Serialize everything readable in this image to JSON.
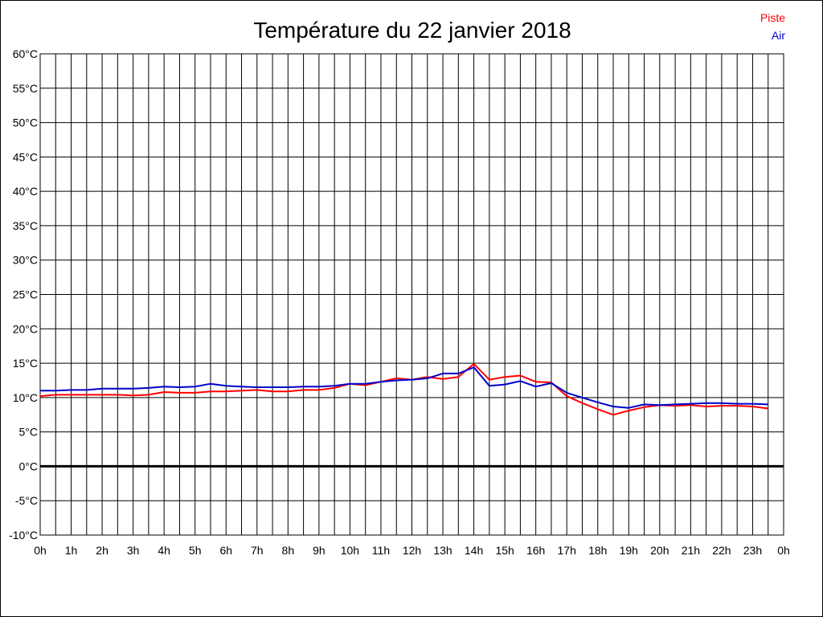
{
  "chart_data": {
    "type": "line",
    "title": "Température du 22 janvier 2018",
    "xlabel": "",
    "ylabel": "",
    "xlim": [
      0,
      24
    ],
    "ylim": [
      -10,
      60
    ],
    "x_tick_labels": [
      "0h",
      "1h",
      "2h",
      "3h",
      "4h",
      "5h",
      "6h",
      "7h",
      "8h",
      "9h",
      "10h",
      "11h",
      "12h",
      "13h",
      "14h",
      "15h",
      "16h",
      "17h",
      "18h",
      "19h",
      "20h",
      "21h",
      "22h",
      "23h",
      "0h"
    ],
    "y_tick_values": [
      60,
      55,
      50,
      45,
      40,
      35,
      30,
      25,
      20,
      15,
      10,
      5,
      0,
      -5,
      -10
    ],
    "y_tick_labels": [
      "60°C",
      "55°C",
      "50°C",
      "45°C",
      "40°C",
      "35°C",
      "30°C",
      "25°C",
      "20°C",
      "15°C",
      "10°C",
      "5°C",
      "0°C",
      "-5°C",
      "-10°C"
    ],
    "grid": true,
    "zero_line": true,
    "legend_position": "top-right",
    "series": [
      {
        "name": "Piste",
        "color": "#ff0000",
        "x": [
          0,
          0.5,
          1,
          1.5,
          2,
          2.5,
          3,
          3.5,
          4,
          4.5,
          5,
          5.5,
          6,
          6.5,
          7,
          7.5,
          8,
          8.5,
          9,
          9.5,
          10,
          10.5,
          11,
          11.5,
          12,
          12.5,
          13,
          13.5,
          14,
          14.5,
          15,
          15.5,
          16,
          16.5,
          17,
          17.5,
          18,
          18.5,
          19,
          19.5,
          20,
          20.5,
          21,
          21.5,
          22,
          22.5,
          23,
          23.5
        ],
        "values": [
          10.2,
          10.4,
          10.4,
          10.4,
          10.4,
          10.4,
          10.3,
          10.4,
          10.8,
          10.7,
          10.7,
          10.9,
          10.9,
          11.0,
          11.1,
          10.9,
          10.9,
          11.1,
          11.1,
          11.4,
          12.0,
          11.8,
          12.3,
          12.8,
          12.6,
          13.0,
          12.7,
          13.0,
          14.9,
          12.6,
          13.0,
          13.2,
          12.3,
          12.2,
          10.2,
          9.2,
          8.3,
          7.5,
          8.1,
          8.6,
          8.9,
          8.8,
          8.9,
          8.7,
          8.8,
          8.8,
          8.7,
          8.4
        ]
      },
      {
        "name": "Air",
        "color": "#0000cc",
        "x": [
          0,
          0.5,
          1,
          1.5,
          2,
          2.5,
          3,
          3.5,
          4,
          4.5,
          5,
          5.5,
          6,
          6.5,
          7,
          7.5,
          8,
          8.5,
          9,
          9.5,
          10,
          10.5,
          11,
          11.5,
          12,
          12.5,
          13,
          13.5,
          14,
          14.5,
          15,
          15.5,
          16,
          16.5,
          17,
          17.5,
          18,
          18.5,
          19,
          19.5,
          20,
          20.5,
          21,
          21.5,
          22,
          22.5,
          23,
          23.5
        ],
        "values": [
          11.0,
          11.0,
          11.1,
          11.1,
          11.3,
          11.3,
          11.3,
          11.4,
          11.6,
          11.5,
          11.6,
          12.0,
          11.7,
          11.6,
          11.5,
          11.5,
          11.5,
          11.6,
          11.6,
          11.7,
          12.0,
          12.0,
          12.3,
          12.5,
          12.6,
          12.8,
          13.5,
          13.5,
          14.4,
          11.7,
          11.9,
          12.4,
          11.6,
          12.1,
          10.7,
          10.0,
          9.3,
          8.7,
          8.5,
          9.0,
          8.9,
          9.0,
          9.1,
          9.2,
          9.2,
          9.1,
          9.1,
          9.0
        ]
      }
    ]
  }
}
